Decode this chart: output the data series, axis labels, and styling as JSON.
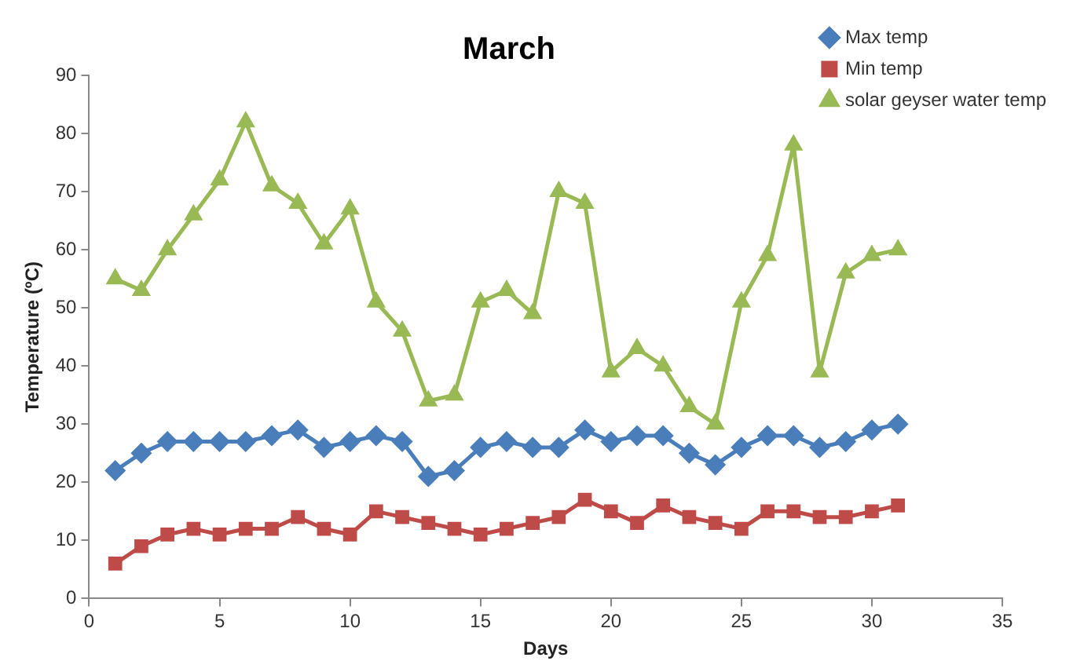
{
  "chart_data": {
    "type": "line",
    "title": "March",
    "xlabel": "Days",
    "ylabel": "Temperature (ºC)",
    "x": [
      1,
      2,
      3,
      4,
      5,
      6,
      7,
      8,
      9,
      10,
      11,
      12,
      13,
      14,
      15,
      16,
      17,
      18,
      19,
      20,
      21,
      22,
      23,
      24,
      25,
      26,
      27,
      28,
      29,
      30,
      31
    ],
    "series": [
      {
        "name": "Max temp",
        "color": "#4a7ebb",
        "marker": "diamond",
        "values": [
          22,
          25,
          27,
          27,
          27,
          27,
          28,
          29,
          26,
          27,
          28,
          27,
          21,
          22,
          26,
          27,
          26,
          26,
          29,
          27,
          28,
          28,
          25,
          23,
          26,
          28,
          28,
          26,
          27,
          29,
          30
        ]
      },
      {
        "name": "Min temp",
        "color": "#be4b48",
        "marker": "square",
        "values": [
          6,
          9,
          11,
          12,
          11,
          12,
          12,
          14,
          12,
          11,
          15,
          14,
          13,
          12,
          11,
          12,
          13,
          14,
          17,
          15,
          13,
          16,
          14,
          13,
          12,
          15,
          15,
          14,
          14,
          15,
          16
        ]
      },
      {
        "name": "solar geyser water temp",
        "color": "#98b954",
        "marker": "triangle",
        "values": [
          55,
          53,
          60,
          66,
          72,
          82,
          71,
          68,
          61,
          67,
          51,
          46,
          34,
          35,
          51,
          53,
          49,
          70,
          68,
          39,
          43,
          40,
          33,
          30,
          51,
          59,
          78,
          39,
          56,
          59,
          60
        ]
      }
    ],
    "xlim": [
      0,
      35
    ],
    "xticks": [
      0,
      5,
      10,
      15,
      20,
      25,
      30,
      35
    ],
    "ylim": [
      0,
      90
    ],
    "yticks": [
      0,
      10,
      20,
      30,
      40,
      50,
      60,
      70,
      80,
      90
    ],
    "grid": false,
    "legend": "top right",
    "line_style": "solid"
  }
}
